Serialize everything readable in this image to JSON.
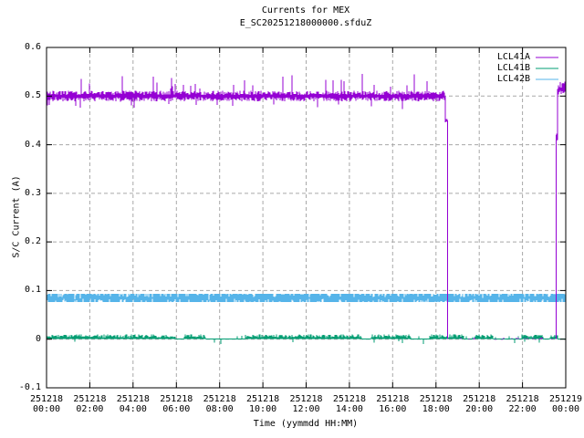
{
  "window": {
    "kind": "gnuplot-plot-window"
  },
  "chart_data": {
    "type": "line",
    "title": "Currents for MEX",
    "subtitle": "E_SC20251218000000.sfduZ",
    "xlabel": "Time (yymmdd HH:MM)",
    "ylabel": "S/C Current (A)",
    "ylim": [
      -0.1,
      0.6
    ],
    "x_span_hours": [
      0,
      24
    ],
    "grid": true,
    "grid_color": "#a8a8a8",
    "border_color": "#000000",
    "legend_position": "top-right-inside",
    "y_ticks": [
      {
        "value": 0.6,
        "label": "0.6"
      },
      {
        "value": 0.5,
        "label": "0.5"
      },
      {
        "value": 0.4,
        "label": "0.4"
      },
      {
        "value": 0.3,
        "label": "0.3"
      },
      {
        "value": 0.2,
        "label": "0.2"
      },
      {
        "value": 0.1,
        "label": "0.1"
      },
      {
        "value": 0.0,
        "label": "0"
      },
      {
        "value": -0.1,
        "label": "-0.1"
      }
    ],
    "x_ticks": [
      {
        "hour": 0,
        "date": "251218",
        "time": "00:00"
      },
      {
        "hour": 2,
        "date": "251218",
        "time": "02:00"
      },
      {
        "hour": 4,
        "date": "251218",
        "time": "04:00"
      },
      {
        "hour": 6,
        "date": "251218",
        "time": "06:00"
      },
      {
        "hour": 8,
        "date": "251218",
        "time": "08:00"
      },
      {
        "hour": 10,
        "date": "251218",
        "time": "10:00"
      },
      {
        "hour": 12,
        "date": "251218",
        "time": "12:00"
      },
      {
        "hour": 14,
        "date": "251218",
        "time": "14:00"
      },
      {
        "hour": 16,
        "date": "251218",
        "time": "16:00"
      },
      {
        "hour": 18,
        "date": "251218",
        "time": "18:00"
      },
      {
        "hour": 20,
        "date": "251218",
        "time": "20:00"
      },
      {
        "hour": 22,
        "date": "251218",
        "time": "22:00"
      },
      {
        "hour": 24,
        "date": "251219",
        "time": "00:00"
      }
    ],
    "series": [
      {
        "name": "LCL41A",
        "color": "#9400d3",
        "summary": "Noisy ~0.50 A from 00:00; brief step to 0.45 A at ~18:26; drops to 0.00 A at ~18:31; stays 0 until ~23:33; brief 0.42 A; back to ~0.51 A until 00:00",
        "segments": [
          {
            "t0": 0.0,
            "t1": 18.43,
            "mode": "noisy",
            "base": 0.5,
            "amp": 0.011,
            "spike_p": 0.07,
            "spike_amp": 0.038,
            "dip_p": 0.05,
            "dip_amp": 0.018
          },
          {
            "t0": 18.43,
            "t1": 18.53,
            "mode": "noisy",
            "base": 0.45,
            "amp": 0.004,
            "spike_p": 0,
            "spike_amp": 0,
            "dip_p": 0,
            "dip_amp": 0
          },
          {
            "t0": 18.53,
            "t1": 23.55,
            "mode": "sparse",
            "base": 0.0,
            "amp": 0.004
          },
          {
            "t0": 23.55,
            "t1": 23.63,
            "mode": "noisy",
            "base": 0.42,
            "amp": 0.012,
            "spike_p": 0,
            "spike_amp": 0,
            "dip_p": 0,
            "dip_amp": 0
          },
          {
            "t0": 23.63,
            "t1": 24.0,
            "mode": "noisy",
            "base": 0.515,
            "amp": 0.013,
            "spike_p": 0.1,
            "spike_amp": 0.012,
            "dip_p": 0.05,
            "dip_amp": 0.01
          }
        ]
      },
      {
        "name": "LCL41B",
        "color": "#009e73",
        "summary": "~0.00 A all day with upward noise bursts to ~+0.01 A and rare dips to ~-0.01 A",
        "segments": [
          {
            "t0": 0.0,
            "t1": 24.0,
            "mode": "blocky",
            "base": 0.0,
            "amp_up": 0.01,
            "dip": 0.01,
            "dip_p": 0.02,
            "on_p": 0.62
          }
        ]
      },
      {
        "name": "LCL42B",
        "color": "#56b4e9",
        "summary": "Constant thick band ~0.085 A (0.077–0.094 A) all day",
        "segments": [
          {
            "t0": 0.0,
            "t1": 24.0,
            "mode": "band",
            "lo": 0.0765,
            "hi": 0.0935,
            "notch_p": 0.22,
            "notch_amp": 0.007
          }
        ]
      }
    ]
  }
}
